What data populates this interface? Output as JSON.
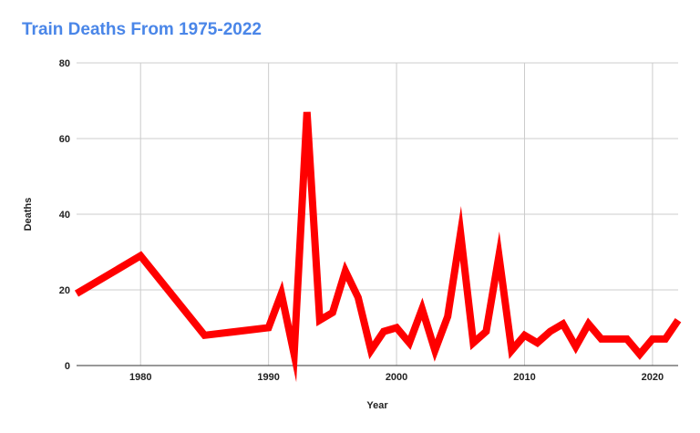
{
  "chart_data": {
    "type": "line",
    "title": "Train Deaths From 1975-2022",
    "xlabel": "Year",
    "ylabel": "Deaths",
    "xlim": [
      1975,
      2022
    ],
    "ylim": [
      0,
      80
    ],
    "x_ticks": [
      1980,
      1990,
      2000,
      2010,
      2020
    ],
    "y_ticks": [
      0,
      20,
      40,
      60,
      80
    ],
    "grid": true,
    "legend": "none",
    "series_color": "#ff0000",
    "x": [
      1975,
      1980,
      1985,
      1990,
      1991,
      1992,
      1993,
      1994,
      1995,
      1996,
      1997,
      1998,
      1999,
      2000,
      2001,
      2002,
      2003,
      2004,
      2005,
      2006,
      2007,
      2008,
      2009,
      2010,
      2011,
      2012,
      2013,
      2014,
      2015,
      2016,
      2017,
      2018,
      2019,
      2020,
      2021,
      2022
    ],
    "series": [
      {
        "values": [
          19,
          29,
          8,
          10,
          19,
          3,
          67,
          12,
          14,
          25,
          18,
          4,
          9,
          10,
          6,
          15,
          4,
          13,
          35,
          6,
          9,
          29,
          4,
          8,
          6,
          9,
          11,
          5,
          11,
          7,
          7,
          7,
          3,
          7,
          7,
          12
        ]
      }
    ]
  }
}
